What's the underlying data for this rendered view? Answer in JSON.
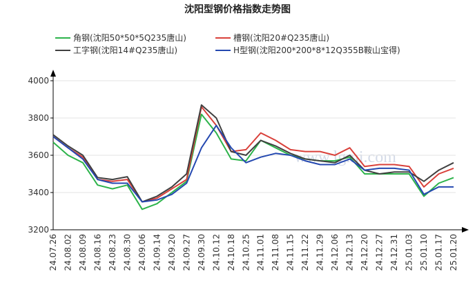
{
  "chart_data": {
    "type": "line",
    "title": "沈阳型钢价格指数走势图",
    "watermark": "www.lgmi.com",
    "categories": [
      "24.07.26",
      "24.08.02",
      "24.08.09",
      "24.08.16",
      "24.08.23",
      "24.08.30",
      "24.09.06",
      "24.09.14",
      "24.09.20",
      "24.09.27",
      "24.09.30",
      "24.10.12",
      "24.10.18",
      "24.10.25",
      "24.11.01",
      "24.11.08",
      "24.11.15",
      "24.11.22",
      "24.11.29",
      "24.12.06",
      "24.12.13",
      "24.12.20",
      "24.12.27",
      "24.12.31",
      "25.01.03",
      "25.01.10",
      "25.01.17",
      "25.01.20"
    ],
    "series": [
      {
        "name": "角钢(沈阳50*50*5Q235唐山)",
        "color": "#2cb34a",
        "values": [
          3670,
          3600,
          3560,
          3440,
          3420,
          3440,
          3310,
          3340,
          3400,
          3460,
          3820,
          3720,
          3580,
          3570,
          3680,
          3640,
          3600,
          3580,
          3570,
          3570,
          3590,
          3500,
          3500,
          3500,
          3500,
          3380,
          3450,
          3480
        ]
      },
      {
        "name": "槽钢(沈阳20#Q235唐山)",
        "color": "#d9403a",
        "values": [
          3700,
          3640,
          3590,
          3470,
          3460,
          3470,
          3350,
          3370,
          3420,
          3470,
          3860,
          3760,
          3620,
          3630,
          3720,
          3680,
          3630,
          3620,
          3620,
          3600,
          3640,
          3540,
          3550,
          3550,
          3540,
          3430,
          3500,
          3530
        ]
      },
      {
        "name": "工字钢(沈阳14#Q235唐山)",
        "color": "#404040",
        "values": [
          3710,
          3650,
          3600,
          3480,
          3470,
          3485,
          3350,
          3380,
          3430,
          3500,
          3870,
          3800,
          3620,
          3600,
          3680,
          3650,
          3610,
          3580,
          3570,
          3560,
          3600,
          3520,
          3500,
          3510,
          3510,
          3460,
          3520,
          3560
        ]
      },
      {
        "name": "H型钢(沈阳200*200*8*12Q355B鞍山宝得)",
        "color": "#2448b0",
        "values": [
          3700,
          3640,
          3580,
          3470,
          3450,
          3450,
          3350,
          3360,
          3390,
          3450,
          3640,
          3760,
          3640,
          3560,
          3590,
          3610,
          3600,
          3570,
          3550,
          3550,
          3580,
          3520,
          3530,
          3530,
          3520,
          3390,
          3430,
          3430
        ]
      }
    ],
    "ylim": [
      3200,
      4000
    ],
    "yticks": [
      3200,
      3400,
      3600,
      3800,
      4000
    ],
    "grid": true
  }
}
